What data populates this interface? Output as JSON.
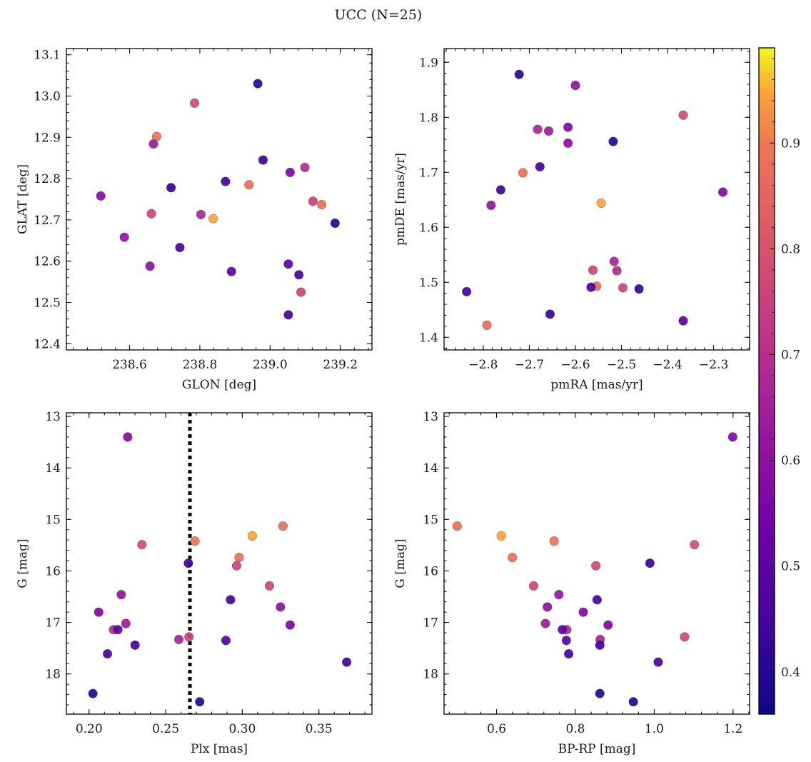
{
  "title": "UCC (N=25)",
  "chart_data": [
    {
      "type": "scatter",
      "xlabel": "GLON [deg]",
      "ylabel": "GLAT [deg]",
      "xlim": [
        238.42,
        239.29
      ],
      "ylim": [
        12.385,
        13.115
      ],
      "xticks": [
        238.6,
        238.8,
        239.0,
        239.2
      ],
      "xtick_labels": [
        "238.6",
        "238.8",
        "239.0",
        "239.2"
      ],
      "yticks": [
        12.4,
        12.5,
        12.6,
        12.7,
        12.8,
        12.9,
        13.0,
        13.1
      ],
      "ytick_labels": [
        "12.4",
        "12.5",
        "12.6",
        "12.7",
        "12.8",
        "12.9",
        "13.0",
        "13.1"
      ],
      "y_inverted": false,
      "points": [
        {
          "x": 238.965,
          "y": 13.03,
          "c": 0.4
        },
        {
          "x": 238.785,
          "y": 12.983,
          "c": 0.77
        },
        {
          "x": 238.677,
          "y": 12.902,
          "c": 0.87
        },
        {
          "x": 238.668,
          "y": 12.884,
          "c": 0.63
        },
        {
          "x": 238.98,
          "y": 12.845,
          "c": 0.42
        },
        {
          "x": 239.099,
          "y": 12.827,
          "c": 0.68
        },
        {
          "x": 239.057,
          "y": 12.815,
          "c": 0.56
        },
        {
          "x": 238.873,
          "y": 12.793,
          "c": 0.45
        },
        {
          "x": 238.94,
          "y": 12.785,
          "c": 0.86
        },
        {
          "x": 238.718,
          "y": 12.778,
          "c": 0.42
        },
        {
          "x": 238.518,
          "y": 12.758,
          "c": 0.57
        },
        {
          "x": 239.122,
          "y": 12.745,
          "c": 0.74
        },
        {
          "x": 239.147,
          "y": 12.737,
          "c": 0.86
        },
        {
          "x": 238.662,
          "y": 12.715,
          "c": 0.75
        },
        {
          "x": 238.803,
          "y": 12.713,
          "c": 0.66
        },
        {
          "x": 238.838,
          "y": 12.703,
          "c": 0.95
        },
        {
          "x": 239.185,
          "y": 12.692,
          "c": 0.4
        },
        {
          "x": 238.585,
          "y": 12.658,
          "c": 0.61
        },
        {
          "x": 238.743,
          "y": 12.633,
          "c": 0.44
        },
        {
          "x": 239.052,
          "y": 12.593,
          "c": 0.5
        },
        {
          "x": 238.658,
          "y": 12.588,
          "c": 0.6
        },
        {
          "x": 238.89,
          "y": 12.575,
          "c": 0.48
        },
        {
          "x": 239.082,
          "y": 12.567,
          "c": 0.45
        },
        {
          "x": 239.088,
          "y": 12.525,
          "c": 0.75
        },
        {
          "x": 239.052,
          "y": 12.47,
          "c": 0.45
        }
      ]
    },
    {
      "type": "scatter",
      "xlabel": "pmRA [mas/yr]",
      "ylabel": "pmDE [mas/yr]",
      "xlim": [
        -2.885,
        -2.222
      ],
      "ylim": [
        1.377,
        1.925
      ],
      "xticks": [
        -2.8,
        -2.7,
        -2.6,
        -2.5,
        -2.4,
        -2.3
      ],
      "xtick_labels": [
        "−2.8",
        "−2.7",
        "−2.6",
        "−2.5",
        "−2.4",
        "−2.3"
      ],
      "yticks": [
        1.4,
        1.5,
        1.6,
        1.7,
        1.8,
        1.9
      ],
      "ytick_labels": [
        "1.4",
        "1.5",
        "1.6",
        "1.7",
        "1.8",
        "1.9"
      ],
      "y_inverted": false,
      "points": [
        {
          "x": -2.722,
          "y": 1.878,
          "c": 0.4
        },
        {
          "x": -2.6,
          "y": 1.858,
          "c": 0.61
        },
        {
          "x": -2.366,
          "y": 1.804,
          "c": 0.77
        },
        {
          "x": -2.616,
          "y": 1.782,
          "c": 0.57
        },
        {
          "x": -2.682,
          "y": 1.778,
          "c": 0.66
        },
        {
          "x": -2.658,
          "y": 1.775,
          "c": 0.63
        },
        {
          "x": -2.518,
          "y": 1.756,
          "c": 0.4
        },
        {
          "x": -2.616,
          "y": 1.753,
          "c": 0.6
        },
        {
          "x": -2.677,
          "y": 1.71,
          "c": 0.45
        },
        {
          "x": -2.714,
          "y": 1.699,
          "c": 0.87
        },
        {
          "x": -2.762,
          "y": 1.668,
          "c": 0.44
        },
        {
          "x": -2.28,
          "y": 1.664,
          "c": 0.57
        },
        {
          "x": -2.544,
          "y": 1.644,
          "c": 0.95
        },
        {
          "x": -2.783,
          "y": 1.64,
          "c": 0.62
        },
        {
          "x": -2.516,
          "y": 1.538,
          "c": 0.66
        },
        {
          "x": -2.562,
          "y": 1.522,
          "c": 0.75
        },
        {
          "x": -2.51,
          "y": 1.521,
          "c": 0.68
        },
        {
          "x": -2.554,
          "y": 1.493,
          "c": 0.86
        },
        {
          "x": -2.566,
          "y": 1.491,
          "c": 0.45
        },
        {
          "x": -2.497,
          "y": 1.49,
          "c": 0.75
        },
        {
          "x": -2.462,
          "y": 1.488,
          "c": 0.42
        },
        {
          "x": -2.836,
          "y": 1.483,
          "c": 0.45
        },
        {
          "x": -2.655,
          "y": 1.442,
          "c": 0.42
        },
        {
          "x": -2.366,
          "y": 1.43,
          "c": 0.48
        },
        {
          "x": -2.792,
          "y": 1.422,
          "c": 0.86
        }
      ]
    },
    {
      "type": "scatter",
      "xlabel": "Plx [mas]",
      "ylabel": "G [mag]",
      "xlim": [
        0.1852,
        0.3846
      ],
      "ylim": [
        18.78,
        12.93
      ],
      "xticks": [
        0.2,
        0.25,
        0.3,
        0.35
      ],
      "xtick_labels": [
        "0.20",
        "0.25",
        "0.30",
        "0.35"
      ],
      "yticks": [
        13,
        14,
        15,
        16,
        17,
        18
      ],
      "ytick_labels": [
        "13",
        "14",
        "15",
        "16",
        "17",
        "18"
      ],
      "y_inverted": true,
      "vline": {
        "x": 0.2658,
        "style": "dotted"
      },
      "points": [
        {
          "x": 0.2252,
          "y": 13.4,
          "c": 0.57
        },
        {
          "x": 0.3265,
          "y": 15.13,
          "c": 0.86
        },
        {
          "x": 0.3065,
          "y": 15.32,
          "c": 0.95
        },
        {
          "x": 0.2691,
          "y": 15.42,
          "c": 0.87
        },
        {
          "x": 0.2345,
          "y": 15.49,
          "c": 0.77
        },
        {
          "x": 0.2979,
          "y": 15.74,
          "c": 0.86
        },
        {
          "x": 0.2648,
          "y": 15.85,
          "c": 0.42
        },
        {
          "x": 0.2963,
          "y": 15.9,
          "c": 0.75
        },
        {
          "x": 0.3177,
          "y": 16.29,
          "c": 0.75
        },
        {
          "x": 0.221,
          "y": 16.46,
          "c": 0.61
        },
        {
          "x": 0.2923,
          "y": 16.56,
          "c": 0.45
        },
        {
          "x": 0.3249,
          "y": 16.7,
          "c": 0.6
        },
        {
          "x": 0.2063,
          "y": 16.8,
          "c": 0.57
        },
        {
          "x": 0.224,
          "y": 17.02,
          "c": 0.63
        },
        {
          "x": 0.3312,
          "y": 17.05,
          "c": 0.56
        },
        {
          "x": 0.216,
          "y": 17.14,
          "c": 0.68
        },
        {
          "x": 0.2188,
          "y": 17.14,
          "c": 0.5
        },
        {
          "x": 0.2652,
          "y": 17.28,
          "c": 0.75
        },
        {
          "x": 0.2586,
          "y": 17.33,
          "c": 0.66
        },
        {
          "x": 0.2893,
          "y": 17.35,
          "c": 0.48
        },
        {
          "x": 0.23,
          "y": 17.44,
          "c": 0.44
        },
        {
          "x": 0.212,
          "y": 17.61,
          "c": 0.45
        },
        {
          "x": 0.3681,
          "y": 17.77,
          "c": 0.45
        },
        {
          "x": 0.2025,
          "y": 18.38,
          "c": 0.4
        },
        {
          "x": 0.2722,
          "y": 18.54,
          "c": 0.4
        }
      ]
    },
    {
      "type": "scatter",
      "xlabel": "BP-RP [mag]",
      "ylabel": "G [mag]",
      "xlim": [
        0.4668,
        1.2419
      ],
      "ylim": [
        18.78,
        12.93
      ],
      "xticks": [
        0.6,
        0.8,
        1.0,
        1.2
      ],
      "xtick_labels": [
        "0.6",
        "0.8",
        "1.0",
        "1.2"
      ],
      "yticks": [
        13,
        14,
        15,
        16,
        17,
        18
      ],
      "ytick_labels": [
        "13",
        "14",
        "15",
        "16",
        "17",
        "18"
      ],
      "y_inverted": true,
      "points": [
        {
          "x": 1.199,
          "y": 13.4,
          "c": 0.57
        },
        {
          "x": 0.5,
          "y": 15.13,
          "c": 0.86
        },
        {
          "x": 0.612,
          "y": 15.32,
          "c": 0.95
        },
        {
          "x": 0.746,
          "y": 15.42,
          "c": 0.87
        },
        {
          "x": 1.102,
          "y": 15.49,
          "c": 0.77
        },
        {
          "x": 0.64,
          "y": 15.74,
          "c": 0.86
        },
        {
          "x": 0.989,
          "y": 15.85,
          "c": 0.42
        },
        {
          "x": 0.852,
          "y": 15.9,
          "c": 0.75
        },
        {
          "x": 0.694,
          "y": 16.29,
          "c": 0.75
        },
        {
          "x": 0.758,
          "y": 16.46,
          "c": 0.61
        },
        {
          "x": 0.855,
          "y": 16.56,
          "c": 0.45
        },
        {
          "x": 0.729,
          "y": 16.7,
          "c": 0.6
        },
        {
          "x": 0.82,
          "y": 16.8,
          "c": 0.57
        },
        {
          "x": 0.724,
          "y": 17.02,
          "c": 0.63
        },
        {
          "x": 0.883,
          "y": 17.05,
          "c": 0.56
        },
        {
          "x": 0.778,
          "y": 17.14,
          "c": 0.68
        },
        {
          "x": 0.767,
          "y": 17.14,
          "c": 0.5
        },
        {
          "x": 1.077,
          "y": 17.28,
          "c": 0.75
        },
        {
          "x": 0.863,
          "y": 17.33,
          "c": 0.66
        },
        {
          "x": 0.777,
          "y": 17.35,
          "c": 0.48
        },
        {
          "x": 0.862,
          "y": 17.44,
          "c": 0.44
        },
        {
          "x": 0.783,
          "y": 17.61,
          "c": 0.45
        },
        {
          "x": 1.01,
          "y": 17.77,
          "c": 0.45
        },
        {
          "x": 0.862,
          "y": 18.38,
          "c": 0.4
        },
        {
          "x": 0.947,
          "y": 18.54,
          "c": 0.4
        }
      ]
    }
  ],
  "colorbar": {
    "colormap": "plasma",
    "range": [
      0.36,
      0.99
    ],
    "ticks": [
      0.4,
      0.5,
      0.6,
      0.7,
      0.8,
      0.9
    ],
    "tick_labels": [
      "0.4",
      "0.5",
      "0.6",
      "0.7",
      "0.8",
      "0.9"
    ]
  }
}
